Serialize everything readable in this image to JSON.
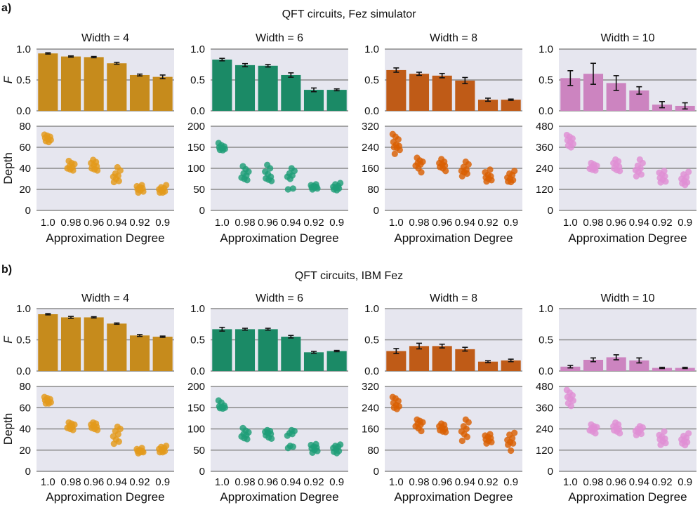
{
  "panel_letters": [
    "a)",
    "b)"
  ],
  "section_titles": [
    "QFT circuits, Fez simulator",
    "QFT circuits, IBM Fez"
  ],
  "xlabel": "Approximation Degree",
  "fidelity_ylabel": "F",
  "depth_ylabel": "Depth",
  "categories": [
    "1.0",
    "0.98",
    "0.96",
    "0.94",
    "0.92",
    "0.9"
  ],
  "widths": [
    {
      "label": "Width = 4",
      "color": "#c68b1c",
      "scatter_color": "#e39a1b",
      "depth_ticks": [
        0,
        20,
        40,
        60,
        80
      ],
      "depth_max": 80
    },
    {
      "label": "Width = 6",
      "color": "#1b8a66",
      "scatter_color": "#1f9e77",
      "depth_ticks": [
        0,
        50,
        100,
        150,
        200
      ],
      "depth_max": 200
    },
    {
      "label": "Width = 8",
      "color": "#bf5b17",
      "scatter_color": "#d95f02",
      "depth_ticks": [
        0,
        80,
        160,
        240,
        320
      ],
      "depth_max": 320
    },
    {
      "label": "Width = 10",
      "color": "#cc84c0",
      "scatter_color": "#df8fd4",
      "depth_ticks": [
        0,
        120,
        240,
        360,
        480
      ],
      "depth_max": 480
    }
  ],
  "fidelity_ticks": [
    "0.0",
    "0.5",
    "1.0"
  ],
  "chart_data": [
    {
      "type": "bar",
      "section": "a) QFT circuits, Fez simulator",
      "ylabel": "F",
      "xlabel": "Approximation Degree",
      "ylim": [
        0,
        1.0
      ],
      "categories": [
        "1.0",
        "0.98",
        "0.96",
        "0.94",
        "0.92",
        "0.9"
      ],
      "series": [
        {
          "name": "Width = 4",
          "values": [
            0.93,
            0.88,
            0.87,
            0.77,
            0.58,
            0.55
          ],
          "errors": [
            0.01,
            0.01,
            0.01,
            0.015,
            0.015,
            0.03
          ]
        },
        {
          "name": "Width = 6",
          "values": [
            0.83,
            0.74,
            0.73,
            0.58,
            0.34,
            0.34
          ],
          "errors": [
            0.02,
            0.025,
            0.02,
            0.035,
            0.03,
            0.015
          ]
        },
        {
          "name": "Width = 8",
          "values": [
            0.66,
            0.6,
            0.57,
            0.49,
            0.18,
            0.18
          ],
          "errors": [
            0.035,
            0.025,
            0.035,
            0.05,
            0.025,
            0.01
          ]
        },
        {
          "name": "Width = 10",
          "values": [
            0.53,
            0.6,
            0.45,
            0.33,
            0.1,
            0.08
          ],
          "errors": [
            0.12,
            0.17,
            0.12,
            0.06,
            0.05,
            0.05
          ]
        }
      ]
    },
    {
      "type": "scatter",
      "section": "a) QFT circuits, Fez simulator",
      "ylabel": "Depth",
      "xlabel": "Approximation Degree",
      "categories": [
        "1.0",
        "0.98",
        "0.96",
        "0.94",
        "0.92",
        "0.9"
      ],
      "series": [
        {
          "name": "Width = 4",
          "ylim": [
            0,
            80
          ],
          "values": [
            [
              72,
              71,
              70,
              69,
              68,
              67,
              66,
              65
            ],
            [
              47,
              45,
              44,
              42,
              41,
              40,
              39,
              38
            ],
            [
              48,
              46,
              45,
              43,
              42,
              40,
              39,
              38
            ],
            [
              41,
              38,
              35,
              33,
              32,
              30,
              28,
              27
            ],
            [
              24,
              23,
              22,
              21,
              20,
              19,
              18,
              17
            ],
            [
              24,
              22,
              21,
              20,
              19,
              18,
              17,
              17
            ]
          ]
        },
        {
          "name": "Width = 6",
          "ylim": [
            0,
            200
          ],
          "values": [
            [
              160,
              155,
              152,
              150,
              148,
              146,
              144,
              143
            ],
            [
              105,
              98,
              92,
              88,
              83,
              78,
              75,
              72
            ],
            [
              108,
              100,
              92,
              86,
              80,
              76,
              73,
              70
            ],
            [
              100,
              94,
              88,
              83,
              80,
              75,
              52,
              50
            ],
            [
              62,
              60,
              58,
              56,
              55,
              54,
              52,
              50
            ],
            [
              65,
              62,
              58,
              56,
              54,
              52,
              50,
              48
            ]
          ]
        },
        {
          "name": "Width = 8",
          "ylim": [
            0,
            320
          ],
          "values": [
            [
              290,
              280,
              270,
              260,
              250,
              245,
              240,
              238,
              230,
              215
            ],
            [
              200,
              190,
              185,
              180,
              175,
              170,
              160,
              145
            ],
            [
              195,
              185,
              180,
              175,
              170,
              165,
              160,
              150
            ],
            [
              185,
              175,
              165,
              155,
              150,
              145,
              140,
              130
            ],
            [
              155,
              145,
              135,
              130,
              125,
              120,
              115,
              110
            ],
            [
              150,
              140,
              135,
              125,
              120,
              115,
              110,
              108
            ]
          ]
        },
        {
          "name": "Width = 10",
          "ylim": [
            0,
            480
          ],
          "values": [
            [
              430,
              420,
              410,
              400,
              390,
              380,
              370,
              360
            ],
            [
              270,
              262,
              255,
              248,
              242,
              238,
              232,
              228
            ],
            [
              290,
              280,
              270,
              260,
              250,
              240,
              230,
              225
            ],
            [
              290,
              270,
              255,
              240,
              230,
              220,
              205,
              195
            ],
            [
              225,
              215,
              205,
              195,
              185,
              175,
              165,
              160
            ],
            [
              220,
              205,
              190,
              180,
              170,
              160,
              155,
              145
            ]
          ]
        }
      ]
    },
    {
      "type": "bar",
      "section": "b) QFT circuits, IBM Fez",
      "ylabel": "F",
      "xlabel": "Approximation Degree",
      "ylim": [
        0,
        1.0
      ],
      "categories": [
        "1.0",
        "0.98",
        "0.96",
        "0.94",
        "0.92",
        "0.9"
      ],
      "series": [
        {
          "name": "Width = 4",
          "values": [
            0.91,
            0.86,
            0.86,
            0.76,
            0.57,
            0.55
          ],
          "errors": [
            0.01,
            0.015,
            0.01,
            0.01,
            0.015,
            0.01
          ]
        },
        {
          "name": "Width = 6",
          "values": [
            0.67,
            0.67,
            0.67,
            0.55,
            0.3,
            0.32
          ],
          "errors": [
            0.03,
            0.015,
            0.015,
            0.02,
            0.015,
            0.01
          ]
        },
        {
          "name": "Width = 8",
          "values": [
            0.32,
            0.4,
            0.4,
            0.35,
            0.15,
            0.17
          ],
          "errors": [
            0.04,
            0.045,
            0.03,
            0.03,
            0.015,
            0.02
          ]
        },
        {
          "name": "Width = 10",
          "values": [
            0.07,
            0.18,
            0.22,
            0.17,
            0.05,
            0.05
          ],
          "errors": [
            0.02,
            0.03,
            0.04,
            0.04,
            0.01,
            0.01
          ]
        }
      ]
    },
    {
      "type": "scatter",
      "section": "b) QFT circuits, IBM Fez",
      "ylabel": "Depth",
      "xlabel": "Approximation Degree",
      "categories": [
        "1.0",
        "0.98",
        "0.96",
        "0.94",
        "0.92",
        "0.9"
      ],
      "series": [
        {
          "name": "Width = 4",
          "ylim": [
            0,
            80
          ],
          "values": [
            [
              70,
              69,
              68,
              67,
              66,
              65,
              64,
              64
            ],
            [
              46,
              45,
              44,
              43,
              42,
              41,
              40,
              39
            ],
            [
              46,
              45,
              44,
              43,
              42,
              41,
              40,
              39
            ],
            [
              42,
              40,
              38,
              35,
              33,
              30,
              28,
              26
            ],
            [
              22,
              21,
              20,
              19,
              19,
              18,
              18,
              17
            ],
            [
              24,
              23,
              22,
              21,
              20,
              19,
              18,
              18
            ]
          ]
        },
        {
          "name": "Width = 6",
          "ylim": [
            0,
            200
          ],
          "values": [
            [
              167,
              162,
              155,
              153,
              151,
              150,
              149,
              148
            ],
            [
              102,
              96,
              92,
              88,
              85,
              82,
              78,
              76
            ],
            [
              97,
              95,
              93,
              90,
              88,
              85,
              80,
              77
            ],
            [
              97,
              95,
              90,
              88,
              84,
              60,
              58,
              55
            ],
            [
              64,
              62,
              58,
              56,
              54,
              50,
              48,
              44
            ],
            [
              63,
              60,
              58,
              55,
              52,
              48,
              46,
              43
            ]
          ]
        },
        {
          "name": "Width = 8",
          "ylim": [
            0,
            320
          ],
          "values": [
            [
              280,
              275,
              265,
              258,
              250,
              245,
              240,
              235
            ],
            [
              195,
              190,
              185,
              180,
              175,
              170,
              162,
              152
            ],
            [
              180,
              175,
              170,
              165,
              160,
              155,
              150,
              148
            ],
            [
              195,
              185,
              170,
              160,
              150,
              140,
              130,
              115
            ],
            [
              140,
              135,
              130,
              125,
              120,
              115,
              110,
              105
            ],
            [
              145,
              138,
              125,
              118,
              110,
              105,
              100,
              78
            ]
          ]
        },
        {
          "name": "Width = 10",
          "ylim": [
            0,
            480
          ],
          "values": [
            [
              460,
              445,
              430,
              420,
              410,
              400,
              385,
              370
            ],
            [
              265,
              255,
              250,
              245,
              240,
              232,
              225,
              215
            ],
            [
              275,
              265,
              255,
              248,
              240,
              232,
              225,
              215
            ],
            [
              255,
              248,
              240,
              235,
              228,
              220,
              212,
              205
            ],
            [
              225,
              205,
              195,
              185,
              180,
              170,
              160,
              150
            ],
            [
              215,
              200,
              190,
              180,
              172,
              165,
              158,
              148
            ]
          ]
        }
      ]
    }
  ]
}
